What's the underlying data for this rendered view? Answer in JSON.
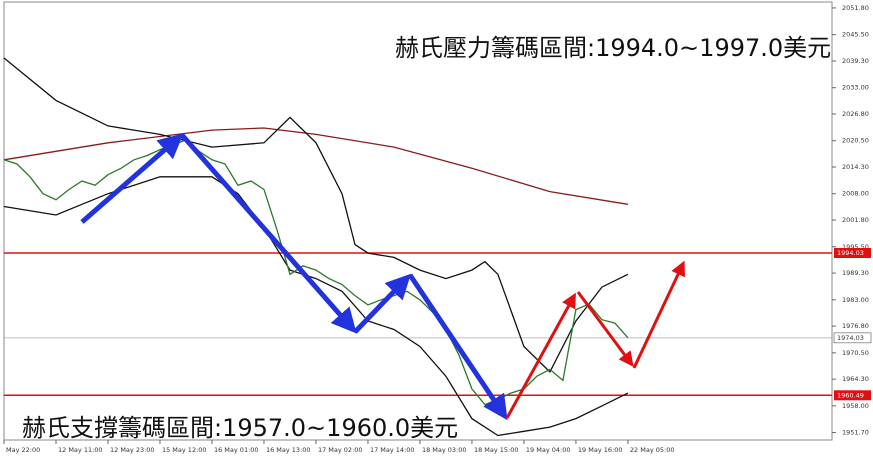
{
  "chart_data": {
    "type": "line",
    "annotations": [
      "赫氏壓力籌碼區間:1994.0~1997.0美元",
      "赫氏支撐籌碼區間:1957.0~1960.0美元"
    ],
    "xlim": [
      0,
      63.7
    ],
    "xticks": [
      {
        "value": 0,
        "label": "May 22:00"
      },
      {
        "value": 4,
        "label": "12 May 11:00"
      },
      {
        "value": 8,
        "label": "12 May 23:00"
      },
      {
        "value": 12,
        "label": "15 May 12:00"
      },
      {
        "value": 16,
        "label": "16 May 01:00"
      },
      {
        "value": 20,
        "label": "16 May 13:00"
      },
      {
        "value": 24,
        "label": "17 May 02:00"
      },
      {
        "value": 28,
        "label": "17 May 14:00"
      },
      {
        "value": 32,
        "label": "18 May 03:00"
      },
      {
        "value": 36,
        "label": "18 May 15:00"
      },
      {
        "value": 40,
        "label": "19 May 04:00"
      },
      {
        "value": 44,
        "label": "19 May 16:00"
      },
      {
        "value": 48,
        "label": "22 May 05:00"
      }
    ],
    "ylim": [
      1949.95,
      2053.2
    ],
    "yticks": [
      {
        "value": 2051.8,
        "label": "2051.80"
      },
      {
        "value": 2045.5,
        "label": "2045.50"
      },
      {
        "value": 2039.3,
        "label": "2039.30"
      },
      {
        "value": 2033,
        "label": "2033.00"
      },
      {
        "value": 2026.8,
        "label": "2026.80"
      },
      {
        "value": 2020.5,
        "label": "2020.50"
      },
      {
        "value": 2014.3,
        "label": "2014.30"
      },
      {
        "value": 2008,
        "label": "2008.00"
      },
      {
        "value": 2001.8,
        "label": "2001.80"
      },
      {
        "value": 1995.5,
        "label": "1995.50"
      },
      {
        "value": 1989.3,
        "label": "1989.30"
      },
      {
        "value": 1983,
        "label": "1983.00"
      },
      {
        "value": 1976.8,
        "label": "1976.80"
      },
      {
        "value": 1970.5,
        "label": "1970.50"
      },
      {
        "value": 1964.3,
        "label": "1964.30"
      },
      {
        "value": 1958,
        "label": "1958.00"
      },
      {
        "value": 1951.7,
        "label": "1951.70"
      }
    ],
    "levels": [
      {
        "value": 1994.03,
        "color": "#e01010"
      },
      {
        "value": 1960.49,
        "color": "#e01010"
      }
    ],
    "last_price": 1974.03,
    "series": [
      {
        "color": "#8b1a1a",
        "x": [
          0,
          8,
          16,
          20,
          24,
          30,
          36,
          42,
          48
        ],
        "values": [
          2016,
          2020,
          2023,
          2023.5,
          2022,
          2019,
          2014,
          2008.5,
          2005.5
        ]
      },
      {
        "color": "#111111",
        "x": [
          0,
          4,
          8,
          12,
          16,
          20,
          22,
          24,
          26,
          27,
          28,
          30,
          32,
          34,
          36,
          37,
          38,
          40,
          42,
          44,
          46,
          48
        ],
        "values": [
          2040,
          2030,
          2024,
          2022,
          2019,
          2020,
          2026,
          2020,
          2008,
          1996,
          1994,
          1993,
          1990,
          1988,
          1990,
          1992,
          1989,
          1972,
          1966,
          1978,
          1986,
          1989
        ]
      },
      {
        "color": "#111111",
        "x": [
          0,
          4,
          8,
          12,
          16,
          18,
          20,
          22,
          24,
          26,
          28,
          30,
          32,
          34,
          36,
          38,
          40,
          42,
          44,
          46,
          48
        ],
        "values": [
          2005,
          2003,
          2008,
          2012,
          2012,
          2008,
          2000,
          1990,
          1988,
          1985,
          1978,
          1976,
          1972,
          1965,
          1955,
          1951,
          1952,
          1953,
          1955,
          1958,
          1961
        ]
      },
      {
        "color": "#2a7a2a",
        "x": [
          0,
          1,
          2,
          3,
          4,
          5,
          6,
          7,
          8,
          9,
          10,
          11,
          12,
          13,
          14,
          15,
          16,
          17,
          18,
          19,
          20,
          21,
          22,
          23,
          24,
          25,
          26,
          27,
          28,
          29,
          30,
          31,
          32,
          33,
          34,
          35,
          36,
          37,
          38,
          39,
          40,
          41,
          42,
          43,
          44,
          45,
          46,
          47,
          48
        ],
        "values": [
          2016,
          2015,
          2012,
          2008,
          2006.6,
          2009,
          2011,
          2010,
          2012.5,
          2014,
          2016,
          2017,
          2018.4,
          2019.5,
          2020.7,
          2018,
          2016,
          2015,
          2010,
          2011,
          2009,
          1999.5,
          1989,
          1991,
          1990,
          1988,
          1986.6,
          1984,
          1981.8,
          1983,
          1984,
          1985,
          1983,
          1980,
          1976,
          1970,
          1962,
          1958.3,
          1959.5,
          1961,
          1962,
          1965,
          1966.6,
          1964,
          1980.7,
          1982,
          1978.3,
          1977.5,
          1974.03
        ]
      }
    ]
  }
}
